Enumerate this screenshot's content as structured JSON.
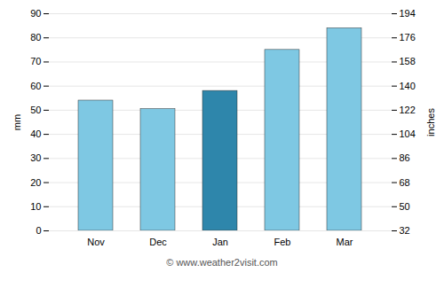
{
  "chart_data": {
    "type": "bar",
    "categories": [
      "Nov",
      "Dec",
      "Jan",
      "Feb",
      "Mar"
    ],
    "values": [
      54,
      50.5,
      58,
      75,
      84
    ],
    "colors": [
      "#7EC8E3",
      "#7EC8E3",
      "#2E86AB",
      "#7EC8E3",
      "#7EC8E3"
    ],
    "ylabel": "mm",
    "y2label": "inches",
    "ylim": [
      0,
      90
    ],
    "yticks": [
      0,
      10,
      20,
      30,
      40,
      50,
      60,
      70,
      80,
      90
    ],
    "y2lim": [
      32,
      194
    ],
    "y2ticks": [
      32,
      50,
      68,
      86,
      104,
      122,
      140,
      158,
      176,
      194
    ],
    "grid": true,
    "caption": "© www.weather2visit.com"
  }
}
